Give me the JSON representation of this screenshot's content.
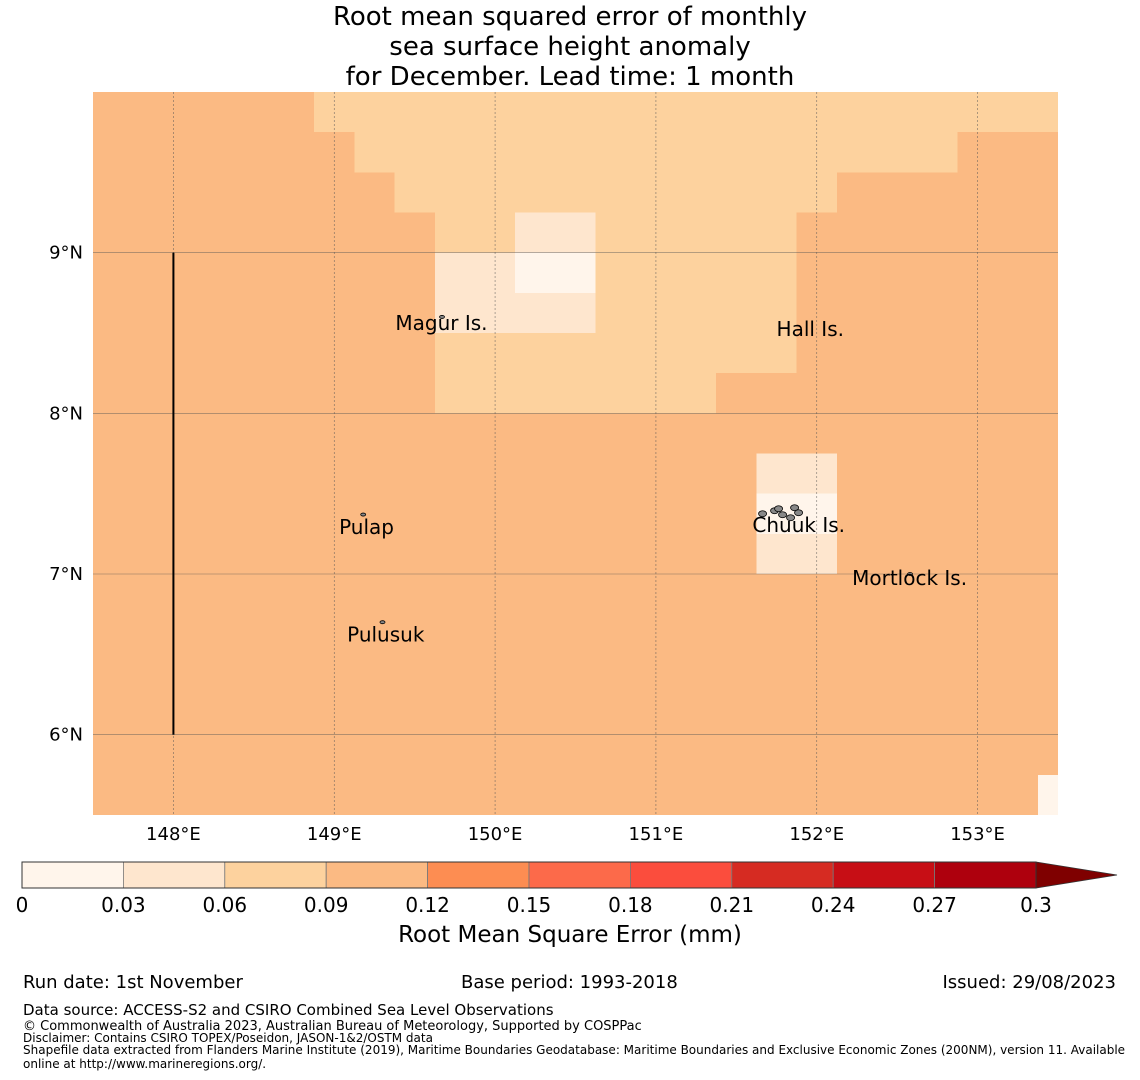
{
  "title": {
    "line1": "Root mean squared error of monthly",
    "line2": "sea surface height anomaly",
    "line3": "for December. Lead time: 1 month"
  },
  "map": {
    "lon_range": [
      147.5,
      153.5
    ],
    "lat_range": [
      5.5,
      10.0
    ],
    "grid_step_deg": 0.25,
    "lon_ticks": [
      148,
      149,
      150,
      151,
      152,
      153
    ],
    "lat_ticks": [
      6,
      7,
      8,
      9
    ],
    "lon_tick_labels": [
      "148°E",
      "149°E",
      "150°E",
      "151°E",
      "152°E",
      "153°E"
    ],
    "lat_tick_labels": [
      "6°N",
      "7°N",
      "8°N",
      "9°N"
    ],
    "base_rmse_class": 3,
    "rmse_regions": [
      {
        "class": 2,
        "row_lat_top": 10.0,
        "col_lon_start": 148.875,
        "col_lon_end": 153.375
      },
      {
        "class": 2,
        "row_lat_top": 9.75,
        "col_lon_start": 149.125,
        "col_lon_end": 152.625
      },
      {
        "class": 2,
        "row_lat_top": 9.5,
        "col_lon_start": 149.375,
        "col_lon_end": 151.875
      },
      {
        "class": 2,
        "row_lat_top": 9.25,
        "col_lon_start": 149.625,
        "col_lon_end": 151.625
      },
      {
        "class": 2,
        "row_lat_top": 9.0,
        "col_lon_start": 149.625,
        "col_lon_end": 151.625
      },
      {
        "class": 2,
        "row_lat_top": 8.75,
        "col_lon_start": 149.625,
        "col_lon_end": 151.625
      },
      {
        "class": 2,
        "row_lat_top": 8.5,
        "col_lon_start": 149.625,
        "col_lon_end": 151.625
      },
      {
        "class": 2,
        "row_lat_top": 8.25,
        "col_lon_start": 149.625,
        "col_lon_end": 151.125
      },
      {
        "class": 1,
        "row_lat_top": 9.25,
        "col_lon_start": 150.125,
        "col_lon_end": 150.375
      },
      {
        "class": 1,
        "row_lat_top": 9.0,
        "col_lon_start": 149.625,
        "col_lon_end": 150.125
      },
      {
        "class": 1,
        "row_lat_top": 8.75,
        "col_lon_start": 149.625,
        "col_lon_end": 150.375
      },
      {
        "class": 0,
        "row_lat_top": 9.0,
        "col_lon_start": 150.125,
        "col_lon_end": 150.375
      },
      {
        "class": 1,
        "row_lat_top": 7.75,
        "col_lon_start": 151.625,
        "col_lon_end": 151.875
      },
      {
        "class": 0,
        "row_lat_top": 7.5,
        "col_lon_start": 151.625,
        "col_lon_end": 151.875
      },
      {
        "class": 1,
        "row_lat_top": 7.25,
        "col_lon_start": 151.625,
        "col_lon_end": 151.875
      },
      {
        "class": 0,
        "row_lat_top": 5.75,
        "col_lon_start": 153.375,
        "col_lon_end": 153.375
      }
    ],
    "boundary_line": {
      "lon": 148.0,
      "lat_start": 6.0,
      "lat_end": 9.0
    },
    "islands": [
      {
        "name": "Magur Is.",
        "lon": 149.67,
        "lat": 8.6,
        "label_lon": 149.38,
        "label_lat": 8.52
      },
      {
        "name": "Hall Is.",
        "lon": 151.95,
        "lat": 8.55,
        "label_lon": 151.75,
        "label_lat": 8.48
      },
      {
        "name": "Pulap",
        "lon": 149.18,
        "lat": 7.37,
        "label_lon": 149.03,
        "label_lat": 7.25
      },
      {
        "name": "Chuuk Is.",
        "lon": 151.8,
        "lat": 7.4,
        "label_lon": 151.6,
        "label_lat": 7.26
      },
      {
        "name": "Mortlock Is.",
        "lon": 152.58,
        "lat": 7.0,
        "label_lon": 152.22,
        "label_lat": 6.93
      },
      {
        "name": "Pulusuk",
        "lon": 149.3,
        "lat": 6.7,
        "label_lon": 149.08,
        "label_lat": 6.58
      }
    ]
  },
  "colorbar": {
    "title": "Root Mean Square Error (mm)",
    "tick_labels": [
      "0",
      "0.03",
      "0.06",
      "0.09",
      "0.12",
      "0.15",
      "0.18",
      "0.21",
      "0.24",
      "0.27",
      "0.3"
    ],
    "colors": [
      "#fff5eb",
      "#fee6ce",
      "#fdd29e",
      "#fbba83",
      "#fd8d52",
      "#fc6a4a",
      "#fb4d3d",
      "#d62b22",
      "#c70e15",
      "#ae000d"
    ],
    "extend_color": "#7f0000"
  },
  "footer": {
    "run_date": "Run date: 1st November",
    "base_period": "Base period: 1993-2018",
    "issued": "Issued: 29/08/2023",
    "data_source": "Data source: ACCESS-S2 and CSIRO Combined Sea Level Observations",
    "copyright": "© Commonwealth of Australia 2023, Australian Bureau of Meteorology, Supported by COSPPac",
    "disclaimer": "Disclaimer: Contains CSIRO TOPEX/Poseidon, JASON-1&2/OSTM data",
    "shapefile": "Shapefile data extracted from Flanders Marine Institute (2019), Maritime Boundaries Geodatabase: Maritime Boundaries and Exclusive Economic Zones (200NM), version 11. Available online at http://www.marineregions.org/."
  }
}
